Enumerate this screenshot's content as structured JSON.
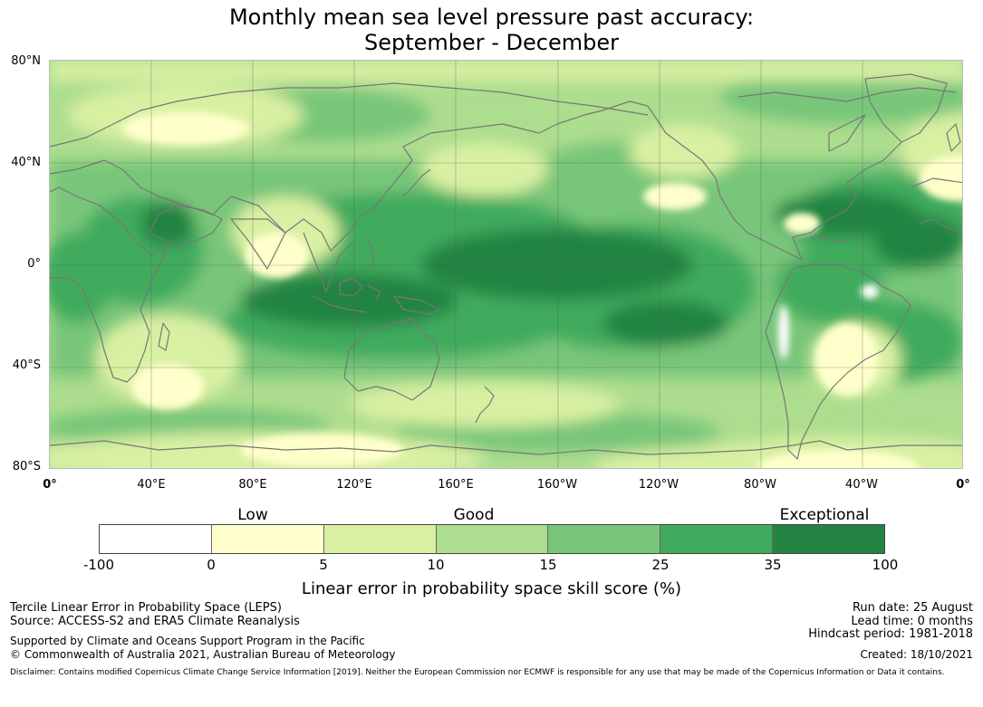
{
  "title": {
    "line1": "Monthly mean sea level pressure past accuracy:",
    "line2": "September - December"
  },
  "map": {
    "projection": "equirectangular, centred on 180°",
    "lat_labels": [
      "80°N",
      "40°N",
      "0°",
      "40°S",
      "80°S"
    ],
    "lon_labels": [
      "0°",
      "40°E",
      "80°E",
      "120°E",
      "160°E",
      "160°W",
      "120°W",
      "80°W",
      "40°W",
      "0°"
    ],
    "gridlines": true,
    "coastline_color": "#777777",
    "dominant_regions": {
      "exceptional": [
        "tropical Pacific",
        "Maritime Continent",
        "eastern Indian Ocean",
        "Caribbean / Gulf of Mexico",
        "tropical North Atlantic"
      ],
      "low": [
        "southern Africa",
        "central South America",
        "western Antarctica",
        "parts of northern Eurasia",
        "Greenland interior"
      ]
    }
  },
  "legend": {
    "categories": [
      "Low",
      "Good",
      "Exceptional"
    ],
    "ticks": [
      "-100",
      "0",
      "5",
      "10",
      "15",
      "25",
      "35",
      "100"
    ],
    "colors": [
      "#ffffff",
      "#ffffcc",
      "#d9f0a3",
      "#addd8e",
      "#78c679",
      "#41ab5d",
      "#238443"
    ],
    "label": "Linear error in probability space skill score (%)"
  },
  "info": {
    "line1": "Tercile Linear Error in Probability Space (LEPS)",
    "line2": "Source: ACCESS-S2 and ERA5 Climate Reanalysis",
    "line3": "Supported by Climate and Oceans Support Program in the Pacific",
    "line4": "© Commonwealth of Australia 2021, Australian Bureau of Meteorology",
    "run_date": "Run date: 25 August",
    "lead_time": "Lead time: 0 months",
    "hindcast": "Hindcast period: 1981-2018",
    "created": "Created: 18/10/2021",
    "disclaimer": "Disclaimer: Contains modified Copernicus Climate Change Service Information [2019]. Neither the European Commission nor ECMWF is responsible for any use that may be made of the Copernicus Information or Data it contains."
  }
}
